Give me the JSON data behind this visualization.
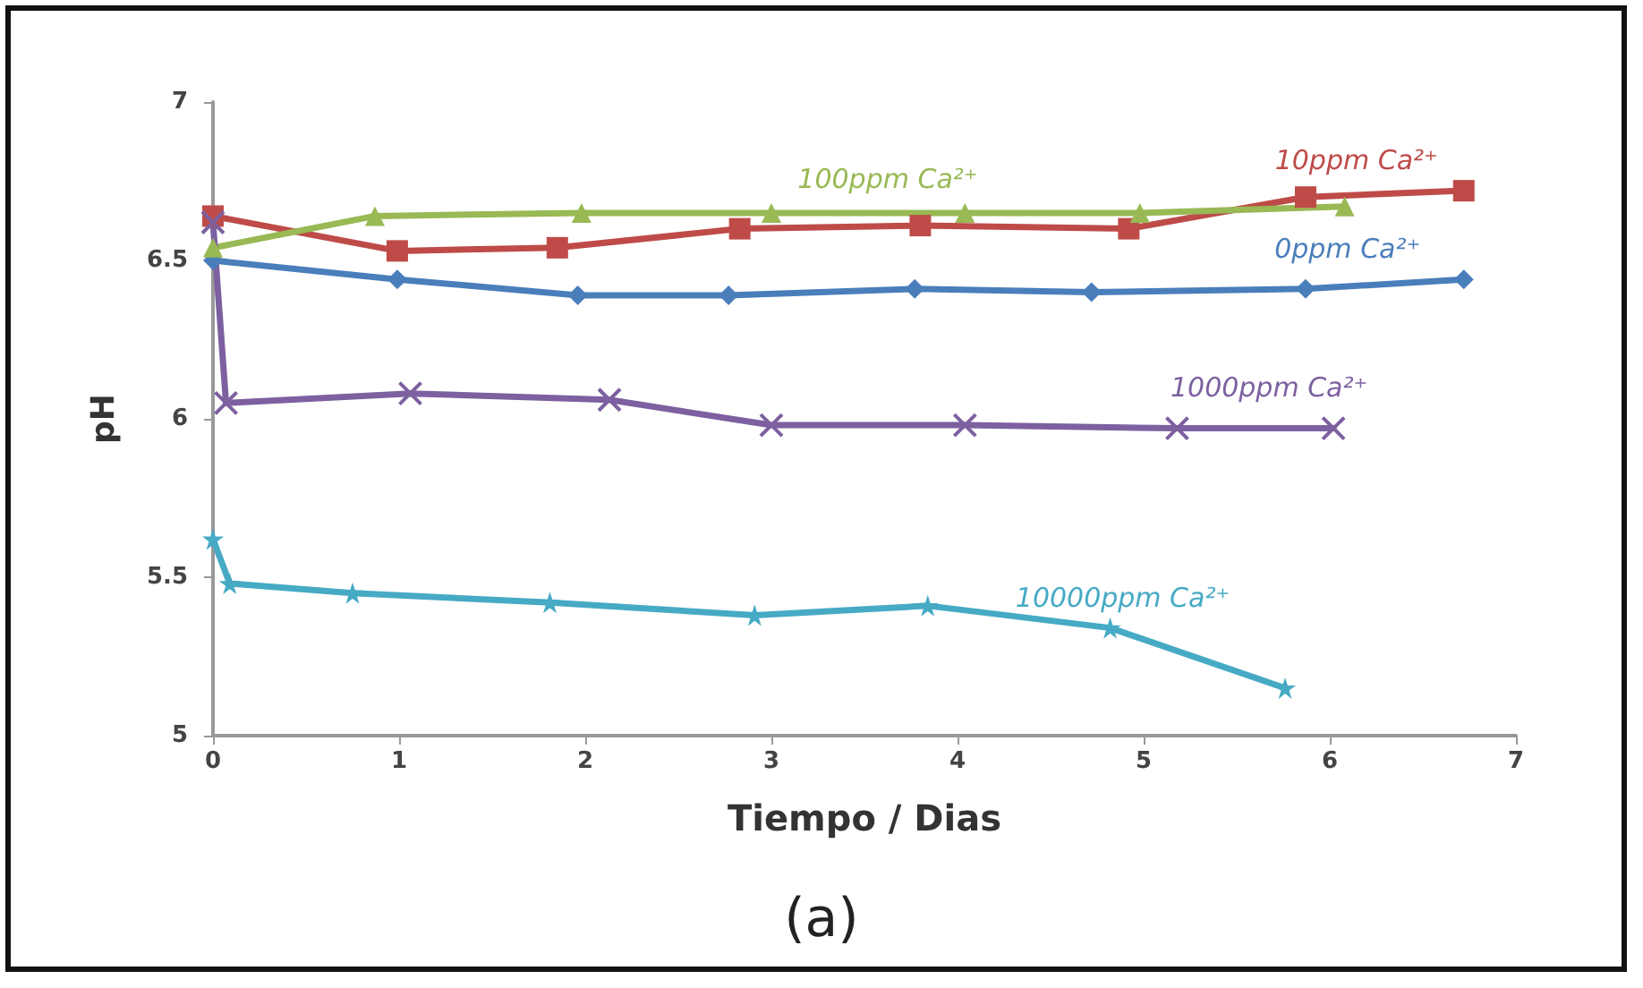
{
  "chart_data": {
    "type": "line",
    "xlabel": "Tiempo / Dias",
    "ylabel": "pH",
    "annotations": [
      "(a)"
    ],
    "xlim": [
      0,
      7
    ],
    "xticks": [
      0,
      1,
      2,
      3,
      4,
      5,
      6,
      7
    ],
    "ylim": [
      5,
      7
    ],
    "yticks": [
      5,
      5.5,
      6,
      6.5,
      7
    ],
    "grid": false,
    "legend": false,
    "series": [
      {
        "name": "0ppm Ca²⁺",
        "color": "#4a7ebb",
        "marker": "diamond",
        "x": [
          0,
          0.99,
          1.96,
          2.77,
          3.77,
          4.72,
          5.87,
          6.72
        ],
        "values": [
          6.5,
          6.44,
          6.39,
          6.39,
          6.41,
          6.4,
          6.41,
          6.44
        ]
      },
      {
        "name": "10ppm Ca²⁺",
        "color": "#be4b48",
        "marker": "square",
        "x": [
          0,
          0.99,
          1.85,
          2.83,
          3.8,
          4.92,
          5.87,
          6.72
        ],
        "values": [
          6.64,
          6.53,
          6.54,
          6.6,
          6.61,
          6.6,
          6.7,
          6.72
        ]
      },
      {
        "name": "100ppm Ca²⁺",
        "color": "#98b954",
        "marker": "triangle",
        "x": [
          0,
          0.87,
          1.98,
          3,
          4.04,
          4.98,
          6.08
        ],
        "values": [
          6.54,
          6.64,
          6.65,
          6.65,
          6.65,
          6.65,
          6.67
        ]
      },
      {
        "name": "1000ppm Ca²⁺",
        "color": "#7d60a0",
        "marker": "cross",
        "x": [
          0,
          0.07,
          1.06,
          2.13,
          3,
          4.04,
          5.18,
          6.02
        ],
        "values": [
          6.62,
          6.05,
          6.08,
          6.06,
          5.98,
          5.98,
          5.97,
          5.97
        ]
      },
      {
        "name": "10000ppm Ca²⁺",
        "color": "#46aac5",
        "marker": "star",
        "x": [
          0,
          0.09,
          0.75,
          1.81,
          2.91,
          3.84,
          4.82,
          5.76
        ],
        "values": [
          5.62,
          5.48,
          5.45,
          5.42,
          5.38,
          5.41,
          5.34,
          5.15
        ]
      }
    ]
  }
}
